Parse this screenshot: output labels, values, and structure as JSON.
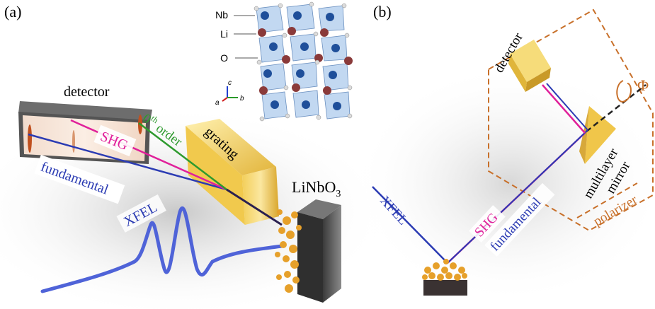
{
  "panel_a": {
    "label": "(a)",
    "detector_label": "detector",
    "grating_label": "grating",
    "sample_label": "LiNbO",
    "sample_subscript": "3",
    "xfel_label": "XFEL",
    "shg_label": "SHG",
    "fundamental_label": "fundamental",
    "zeroth_order_prefix": "0",
    "zeroth_order_sup": "th",
    "zeroth_order_suffix": " order",
    "crystal": {
      "nb_label": "Nb",
      "li_label": "Li",
      "o_label": "O",
      "axis_c": "c",
      "axis_a": "a",
      "axis_b": "b"
    }
  },
  "panel_b": {
    "label": "(b)",
    "detector_label": "detector",
    "mirror_label_line1": "multilayer",
    "mirror_label_line2": "mirror",
    "polarizer_label": "polarizer",
    "phi_label": "Φ",
    "xfel_label": "XFEL",
    "shg_label": "SHG",
    "fundamental_label": "fundamental"
  },
  "colors": {
    "shg": "#e0209a",
    "fundamental": "#2b3bb3",
    "zeroth_order": "#2e9a2e",
    "xfel_wave": "#4f63d8",
    "gold": "#e8c24a",
    "polarizer_dash": "#c8702a",
    "sample_orange": "#e6a02a"
  }
}
